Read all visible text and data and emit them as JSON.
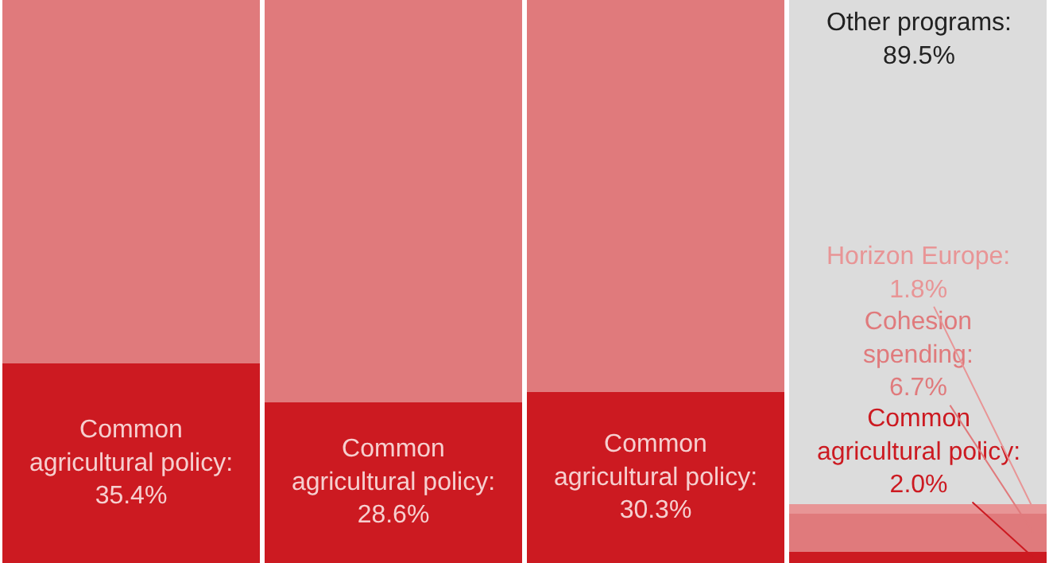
{
  "chart_data": {
    "type": "bar",
    "stacked": true,
    "categories": [
      null,
      null,
      null,
      null
    ],
    "ylim": [
      0,
      100
    ],
    "series": [
      {
        "color": "#cc1a21",
        "values": [
          35.4,
          28.6,
          30.3,
          2.0
        ],
        "value_labels": [
          "Common\nagricultural policy:\n35.4%",
          "Common\nagricultural policy:\n28.6%",
          "Common\nagricultural policy:\n30.3%",
          "Common\nagricultural policy:\n2.0%"
        ]
      },
      {
        "color": "#e07a7c",
        "values": [
          64.6,
          71.4,
          69.7,
          6.7
        ],
        "value_labels": [
          null,
          null,
          null,
          "Cohesion\nspending:\n6.7%"
        ]
      },
      {
        "color": "#e89596",
        "values": [
          null,
          null,
          null,
          1.8
        ],
        "value_labels": [
          null,
          null,
          null,
          "Horizon Europe:\n1.8%"
        ]
      },
      {
        "color": "#dcdcdc",
        "values": [
          null,
          null,
          null,
          89.5
        ],
        "value_labels": [
          null,
          null,
          null,
          "Other programs:\n89.5%"
        ]
      }
    ],
    "tick_labels": false
  }
}
